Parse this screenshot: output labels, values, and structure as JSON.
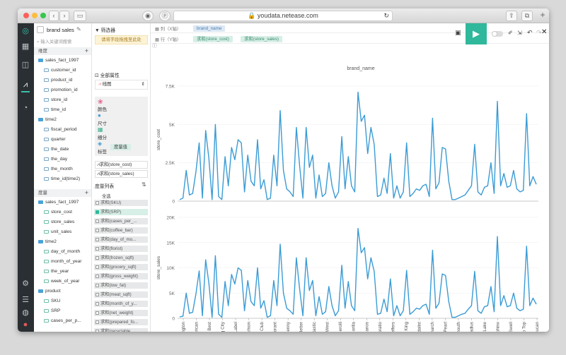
{
  "browser": {
    "url": "youdata.netease.com",
    "lock_icon": "lock-icon"
  },
  "report": {
    "title": "brand sales"
  },
  "search": {
    "placeholder": "输入关键词搜索"
  },
  "dimensions": {
    "header": "维度",
    "table": "sales_fact_1997",
    "fields": [
      "customer_id",
      "product_id",
      "promotion_id",
      "store_id",
      "time_id"
    ],
    "time_group": "time2",
    "time_fields": [
      "fiscal_period",
      "quarter",
      "the_date",
      "the_day",
      "the_month",
      "time_id(time2)"
    ]
  },
  "measures": {
    "header": "度量",
    "table": "sales_fact_1997",
    "fields": [
      "store_cost",
      "store_sales",
      "unit_sales"
    ],
    "time_group": "time2",
    "time_fields": [
      "day_of_month",
      "month_of_year",
      "the_year",
      "week_of_year"
    ],
    "product_group": "product",
    "product_fields": [
      "SKU",
      "SRP",
      "cases_per_p..."
    ]
  },
  "filter": {
    "title": "筛选器",
    "drop_hint": "请将字段拖拽至此处"
  },
  "properties": {
    "title": "全部属性",
    "chart_type": "线图",
    "color_label": "颜色",
    "size_label": "尺寸",
    "detail_label": "细分",
    "tag_label": "标签",
    "measure_name_pill": "度量值",
    "sum_cost": "求和(store_cost)",
    "sum_sales": "求和(store_sales)"
  },
  "measure_list": {
    "title": "度量列表",
    "select_all": "全选",
    "items": [
      {
        "label": "求和(SKU)",
        "checked": false
      },
      {
        "label": "求和(SRP)",
        "checked": true
      },
      {
        "label": "求和(cases_per_...",
        "checked": false
      },
      {
        "label": "求和(coffee_bar)",
        "checked": false
      },
      {
        "label": "求和(day_of_mo...",
        "checked": false
      },
      {
        "label": "求和(florist)",
        "checked": false
      },
      {
        "label": "求和(frozen_sqft)",
        "checked": false
      },
      {
        "label": "求和(grocery_sqft)",
        "checked": false
      },
      {
        "label": "求和(gross_weight)",
        "checked": false
      },
      {
        "label": "求和(low_fat)",
        "checked": false
      },
      {
        "label": "求和(meat_sqft)",
        "checked": false
      },
      {
        "label": "求和(month_of_y...",
        "checked": false
      },
      {
        "label": "求和(net_weight)",
        "checked": false
      },
      {
        "label": "求和(prepared_fo...",
        "checked": false
      },
      {
        "label": "求和(recyclable_...",
        "checked": false
      }
    ]
  },
  "shelves": {
    "col_label": "列（X轴）",
    "col_pill": "brand_name",
    "row_label": "行（Y轴）",
    "row_pills": [
      "求和(store_cost)",
      "求和(store_sales)"
    ]
  },
  "chart_data": {
    "type": "line",
    "title": "brand_name",
    "x_tick_labels": [
      "Washington",
      "American",
      "BBB Best",
      "Big City",
      "Blue Label",
      "Carlson",
      "Club",
      "Cormorant",
      "Denny",
      "Even Better",
      "Fantastic",
      "Fort West",
      "Gerolli",
      "Gorilla",
      "Hermanos",
      "Horatio",
      "Jeffers",
      "King",
      "Medalist",
      "Monarch",
      "Pearl",
      "Portsmouth",
      "Radius",
      "Shady Lake",
      "Sphinx",
      "Swell",
      "Tip Top",
      "Toucan"
    ],
    "series": [
      {
        "ylabel": "store_cost",
        "color": "#3a9bd5",
        "ylim": [
          0,
          8000
        ],
        "yticks": [
          "0",
          "2.5K",
          "5K",
          "7.5K"
        ],
        "values": [
          100,
          200,
          2000,
          400,
          500,
          1900,
          3800,
          200,
          4600,
          2800,
          100,
          5000,
          300,
          100,
          2900,
          1000,
          3500,
          2700,
          4000,
          3800,
          600,
          3000,
          1300,
          1000,
          4000,
          800,
          1400,
          100,
          200,
          3000,
          1000,
          5900,
          2000,
          800,
          600,
          300,
          4800,
          2300,
          200,
          4800,
          2200,
          3000,
          200,
          1700,
          300,
          500,
          2500,
          1000,
          200,
          600,
          4200,
          800,
          2900,
          1000,
          600,
          7100,
          5200,
          5600,
          3100,
          4800,
          3700,
          300,
          400,
          1500,
          500,
          3100,
          200,
          1000,
          200,
          600,
          3800,
          300,
          500,
          800,
          700,
          1000,
          1100,
          300,
          5400,
          800,
          1200,
          3500,
          3400,
          1300,
          100,
          100,
          200,
          300,
          400,
          700,
          1000,
          3700,
          600,
          400,
          900,
          1000,
          2500,
          500,
          6500,
          1000,
          1800,
          900,
          1000,
          2000,
          800,
          600,
          700,
          5700,
          1000,
          1600,
          1100
        ]
      },
      {
        "ylabel": "store_sales",
        "color": "#3a9bd5",
        "ylim": [
          0,
          20000
        ],
        "yticks": [
          "0",
          "5K",
          "10K",
          "15K",
          "20K"
        ],
        "values": [
          300,
          400,
          5000,
          1000,
          1200,
          4800,
          9400,
          500,
          11600,
          7000,
          200,
          12400,
          800,
          200,
          7300,
          2500,
          8700,
          6800,
          10000,
          9500,
          1500,
          7500,
          3300,
          2500,
          10000,
          2000,
          3500,
          200,
          500,
          7500,
          2500,
          14700,
          5000,
          2000,
          1500,
          800,
          12000,
          5800,
          500,
          12000,
          5500,
          7500,
          500,
          4300,
          800,
          1300,
          6300,
          2500,
          500,
          1500,
          10500,
          2000,
          7300,
          2500,
          1500,
          17800,
          13000,
          14000,
          7800,
          12000,
          9300,
          800,
          1000,
          3800,
          1300,
          7800,
          500,
          2500,
          500,
          1500,
          9500,
          800,
          1300,
          2000,
          1800,
          2500,
          2800,
          800,
          13500,
          2000,
          3000,
          8800,
          8500,
          3300,
          200,
          200,
          500,
          800,
          1000,
          1800,
          2500,
          9300,
          1500,
          1000,
          2300,
          2500,
          6300,
          1300,
          16200,
          2500,
          4500,
          2300,
          2500,
          5000,
          2000,
          1500,
          1800,
          14300,
          2500,
          4000,
          2800
        ]
      }
    ]
  }
}
